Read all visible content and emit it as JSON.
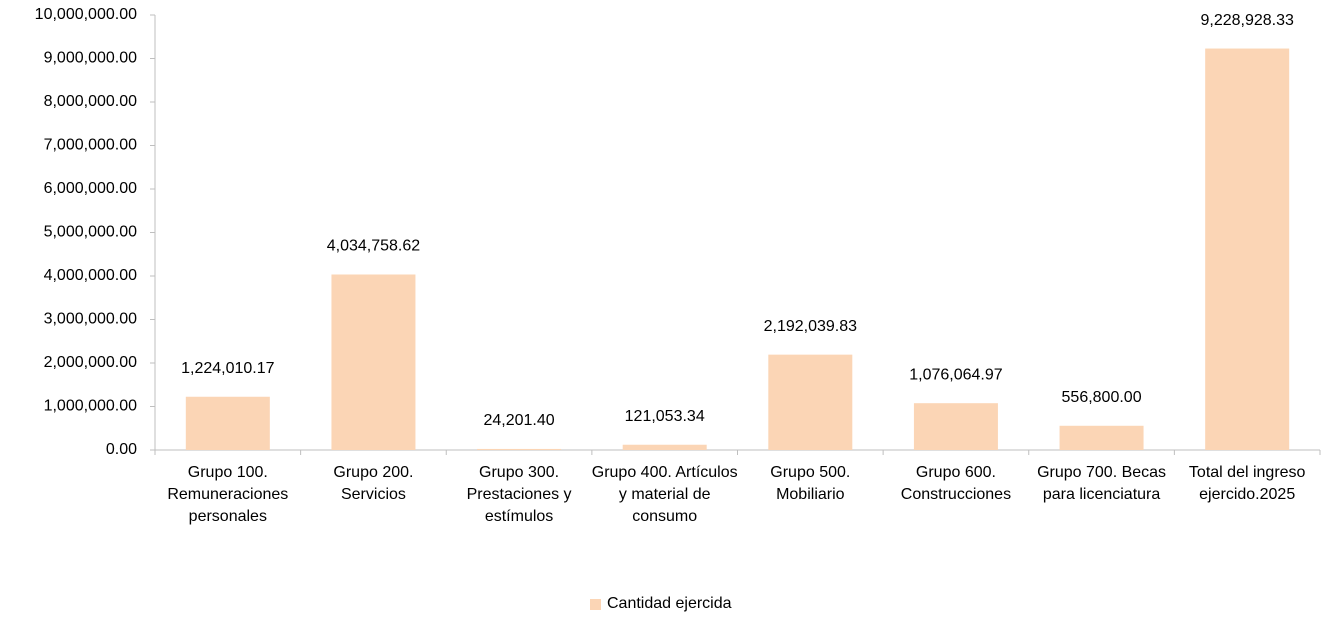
{
  "chart_data": {
    "type": "bar",
    "categories": [
      "Grupo 100. Remuneraciones personales",
      "Grupo 200. Servicios",
      "Grupo 300. Prestaciones y estímulos",
      "Grupo 400. Artículos y material de consumo",
      "Grupo 500. Mobiliario",
      "Grupo 600. Construcciones",
      "Grupo 700. Becas para licenciatura",
      "Total del ingreso ejercido.2025"
    ],
    "series": [
      {
        "name": "Cantidad ejercida",
        "color": "#fbd5b5",
        "values": [
          1224010.17,
          4034758.62,
          24201.4,
          121053.34,
          2192039.83,
          1076064.97,
          556800.0,
          9228928.33
        ],
        "value_labels": [
          "1,224,010.17",
          "4,034,758.62",
          "24,201.40",
          "121,053.34",
          "2,192,039.83",
          "1,076,064.97",
          "556,800.00",
          "9,228,928.33"
        ]
      }
    ],
    "ylim": [
      0,
      10000000
    ],
    "yticks": [
      {
        "value": 0,
        "label": "0.00"
      },
      {
        "value": 1000000,
        "label": "1,000,000.00"
      },
      {
        "value": 2000000,
        "label": "2,000,000.00"
      },
      {
        "value": 3000000,
        "label": "3,000,000.00"
      },
      {
        "value": 4000000,
        "label": "4,000,000.00"
      },
      {
        "value": 5000000,
        "label": "5,000,000.00"
      },
      {
        "value": 6000000,
        "label": "6,000,000.00"
      },
      {
        "value": 7000000,
        "label": "7,000,000.00"
      },
      {
        "value": 8000000,
        "label": "8,000,000.00"
      },
      {
        "value": 9000000,
        "label": "9,000,000.00"
      },
      {
        "value": 10000000,
        "label": "10,000,000.00"
      }
    ],
    "grid": false,
    "legend": "bottom"
  }
}
